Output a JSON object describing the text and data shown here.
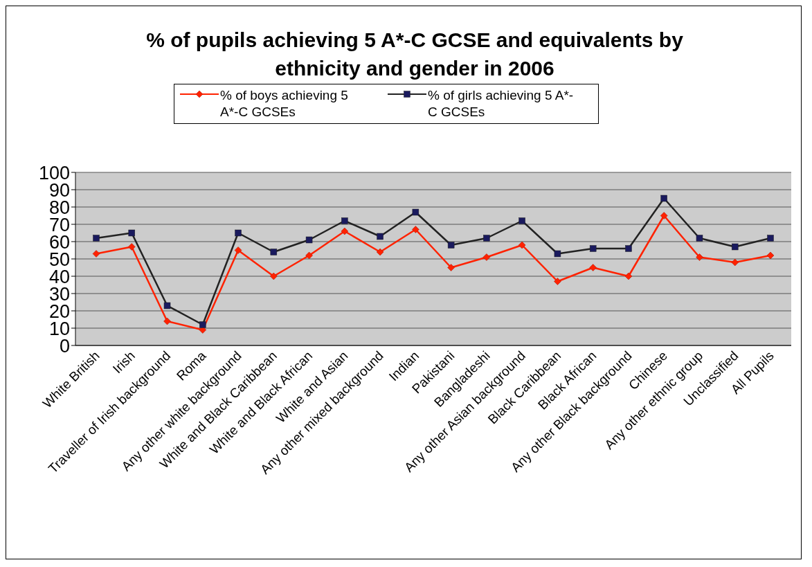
{
  "chart_data": {
    "type": "line",
    "title": "% of pupils achieving 5 A*-C GCSE and equivalents by ethnicity and gender in 2006",
    "categories": [
      "White British",
      "Irish",
      "Traveller of Irish background",
      "Roma",
      "Any other white background",
      "White and Black Caribbean",
      "White and Black African",
      "White and Asian",
      "Any other mixed background",
      "Indian",
      "Pakistani",
      "Bangladeshi",
      "Any other Asian background",
      "Black Caribbean",
      "Black African",
      "Any other Black background",
      "Chinese",
      "Any other ethnic group",
      "Unclassified",
      "All Pupils"
    ],
    "series": [
      {
        "name": "% of boys achieving 5 A*-C GCSEs",
        "color": "#ff2200",
        "marker": "diamond",
        "values": [
          53,
          57,
          14,
          9,
          55,
          40,
          52,
          66,
          54,
          67,
          45,
          51,
          58,
          37,
          45,
          40,
          75,
          51,
          48,
          52
        ]
      },
      {
        "name": "% of girls achieving 5 A*-C GCSEs",
        "color": "#222222",
        "marker": "square",
        "values": [
          62,
          65,
          23,
          12,
          65,
          54,
          61,
          72,
          63,
          77,
          58,
          62,
          72,
          53,
          56,
          56,
          85,
          62,
          57,
          62
        ]
      }
    ],
    "ylim": [
      0,
      100
    ],
    "yticks": [
      0,
      10,
      20,
      30,
      40,
      50,
      60,
      70,
      80,
      90,
      100
    ],
    "grid": "y",
    "legend": "top",
    "line_style": "solid"
  }
}
